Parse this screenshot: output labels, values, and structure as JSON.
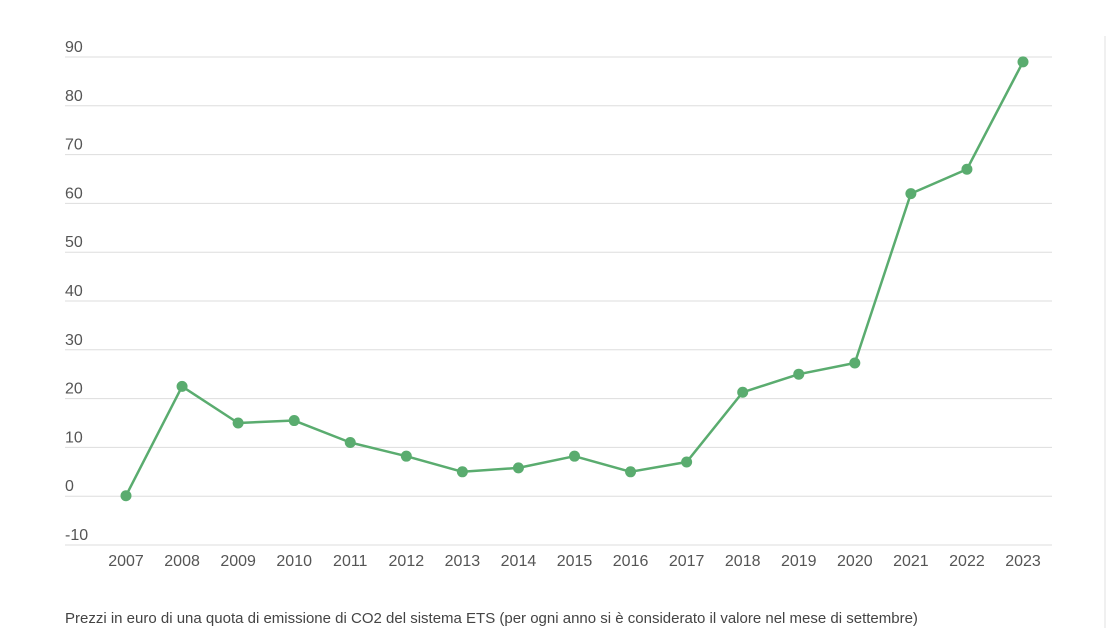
{
  "colors": {
    "series": "#5aac6f",
    "grid": "#dddddd",
    "tick_text": "#555555",
    "caption": "#444444"
  },
  "chart_data": {
    "type": "line",
    "title": "",
    "xlabel": "",
    "ylabel": "",
    "caption": "Prezzi in euro di una quota di emissione di CO2 del sistema ETS (per ogni anno si è considerato il valore nel mese di settembre)",
    "categories": [
      "2007",
      "2008",
      "2009",
      "2010",
      "2011",
      "2012",
      "2013",
      "2014",
      "2015",
      "2016",
      "2017",
      "2018",
      "2019",
      "2020",
      "2021",
      "2022",
      "2023"
    ],
    "series": [
      {
        "values": [
          0.1,
          22.5,
          15.0,
          15.5,
          11.0,
          8.2,
          5.0,
          5.8,
          8.2,
          5.0,
          7.0,
          21.3,
          25.0,
          27.3,
          62.0,
          67.0,
          89.0
        ]
      }
    ],
    "ylim": [
      -10,
      90
    ],
    "yticks": [
      "90",
      "80",
      "70",
      "60",
      "50",
      "40",
      "30",
      "20",
      "10",
      "0",
      "-10"
    ],
    "grid": "horizontal",
    "legend": "none"
  }
}
